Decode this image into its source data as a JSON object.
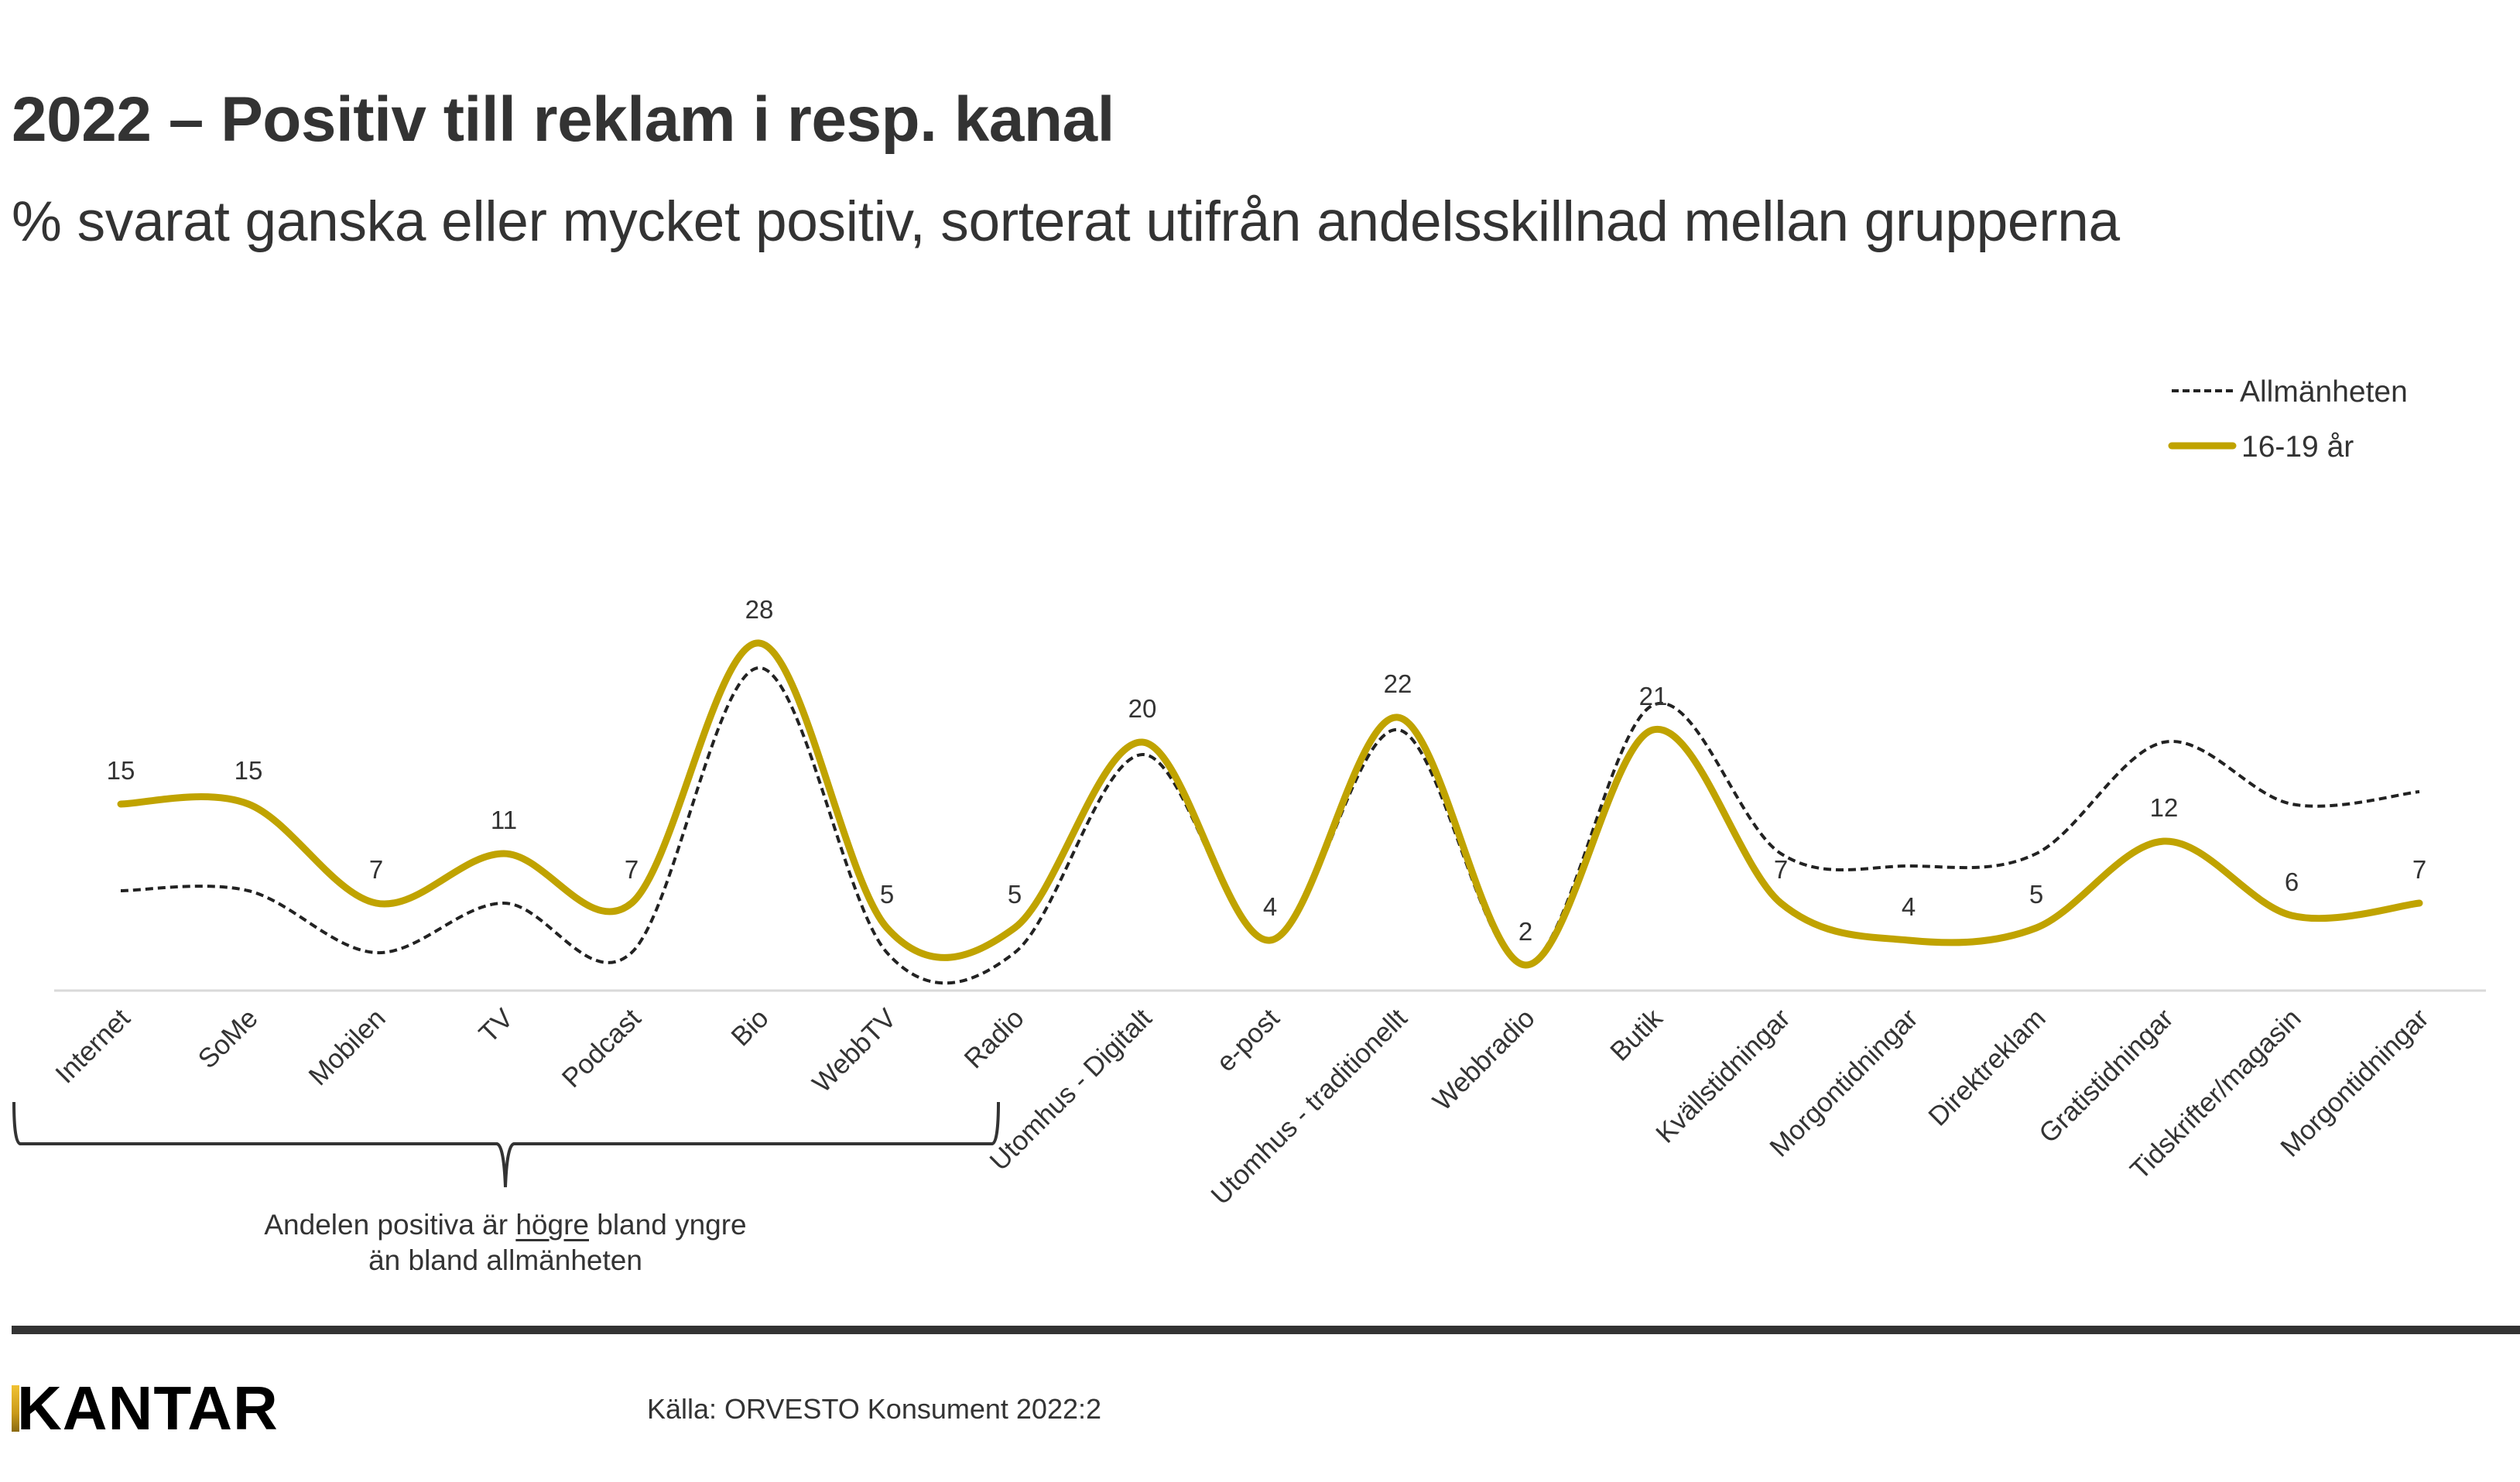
{
  "header": {
    "title": "2022 – Positiv till reklam i resp. kanal",
    "subtitle": "% svarat ganska eller mycket positiv, sorterat utifrån andelsskillnad mellan grupperna"
  },
  "annotation": {
    "line1_before": "Andelen positiva är ",
    "line1_underlined": "högre",
    "line1_after": " bland yngre",
    "line2": "än bland allmänheten"
  },
  "footer": {
    "logo_text": "KANTAR",
    "source": "Källa: ORVESTO Konsument 2022:2"
  },
  "colors": {
    "series_young": "#c0a300",
    "series_general": "#222222",
    "text": "#333333",
    "baseline": "#d9d9d9"
  },
  "chart_data": {
    "type": "line",
    "smoothed": true,
    "title": "2022 – Positiv till reklam i resp. kanal",
    "xlabel": "",
    "ylabel": "",
    "ylim": [
      0,
      30
    ],
    "grid": false,
    "legend_position": "top-right",
    "categories": [
      "Internet",
      "SoMe",
      "Mobilen",
      "TV",
      "Podcast",
      "Bio",
      "WebbTV",
      "Radio",
      "Utomhus - Digitalt",
      "e-post",
      "Utomhus - traditionellt",
      "Webbradio",
      "Butik",
      "Kvällstidningar",
      "Morgontidningar",
      "Direktreklam",
      "Gratistidningar",
      "Tidskrifter/magasin",
      "Morgontidningar"
    ],
    "series": [
      {
        "name": "Allmänheten",
        "style": "dashed",
        "values": [
          8,
          8,
          3,
          7,
          3,
          26,
          3,
          3,
          19,
          4,
          21,
          2,
          23,
          11,
          10,
          11,
          20,
          15,
          16
        ]
      },
      {
        "name": "16-19 år",
        "style": "solid",
        "values": [
          15,
          15,
          7,
          11,
          7,
          28,
          5,
          5,
          20,
          4,
          22,
          2,
          21,
          7,
          4,
          5,
          12,
          6,
          7
        ],
        "data_labels": [
          "15",
          "15",
          "7",
          "11",
          "7",
          "28",
          "5",
          "5",
          "20",
          "4",
          "22",
          "2",
          "21",
          "7",
          "4",
          "5",
          "12",
          "6",
          "7"
        ]
      }
    ],
    "bracket": {
      "label": "Andelen positiva är högre bland yngre än bland allmänheten",
      "from_category": "Internet",
      "to_category": "Radio"
    }
  }
}
